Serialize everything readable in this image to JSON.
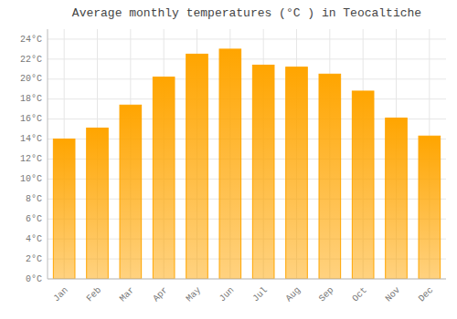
{
  "chart_data": {
    "type": "bar",
    "title": "Average monthly temperatures (°C ) in Teocaltiche",
    "categories": [
      "Jan",
      "Feb",
      "Mar",
      "Apr",
      "May",
      "Jun",
      "Jul",
      "Aug",
      "Sep",
      "Oct",
      "Nov",
      "Dec"
    ],
    "values": [
      14.0,
      15.1,
      17.4,
      20.2,
      22.5,
      23.0,
      21.4,
      21.2,
      20.5,
      18.8,
      16.1,
      14.3
    ],
    "color": "#FFA500",
    "ylim": [
      0,
      25
    ],
    "yticks": [
      {
        "value": 0,
        "label": "0°C"
      },
      {
        "value": 2,
        "label": "2°C"
      },
      {
        "value": 4,
        "label": "4°C"
      },
      {
        "value": 6,
        "label": "6°C"
      },
      {
        "value": 8,
        "label": "8°C"
      },
      {
        "value": 10,
        "label": "10°C"
      },
      {
        "value": 12,
        "label": "12°C"
      },
      {
        "value": 14,
        "label": "14°C"
      },
      {
        "value": 16,
        "label": "16°C"
      },
      {
        "value": 18,
        "label": "18°C"
      },
      {
        "value": 20,
        "label": "20°C"
      },
      {
        "value": 22,
        "label": "22°C"
      },
      {
        "value": 24,
        "label": "24°C"
      }
    ],
    "grid": true
  }
}
